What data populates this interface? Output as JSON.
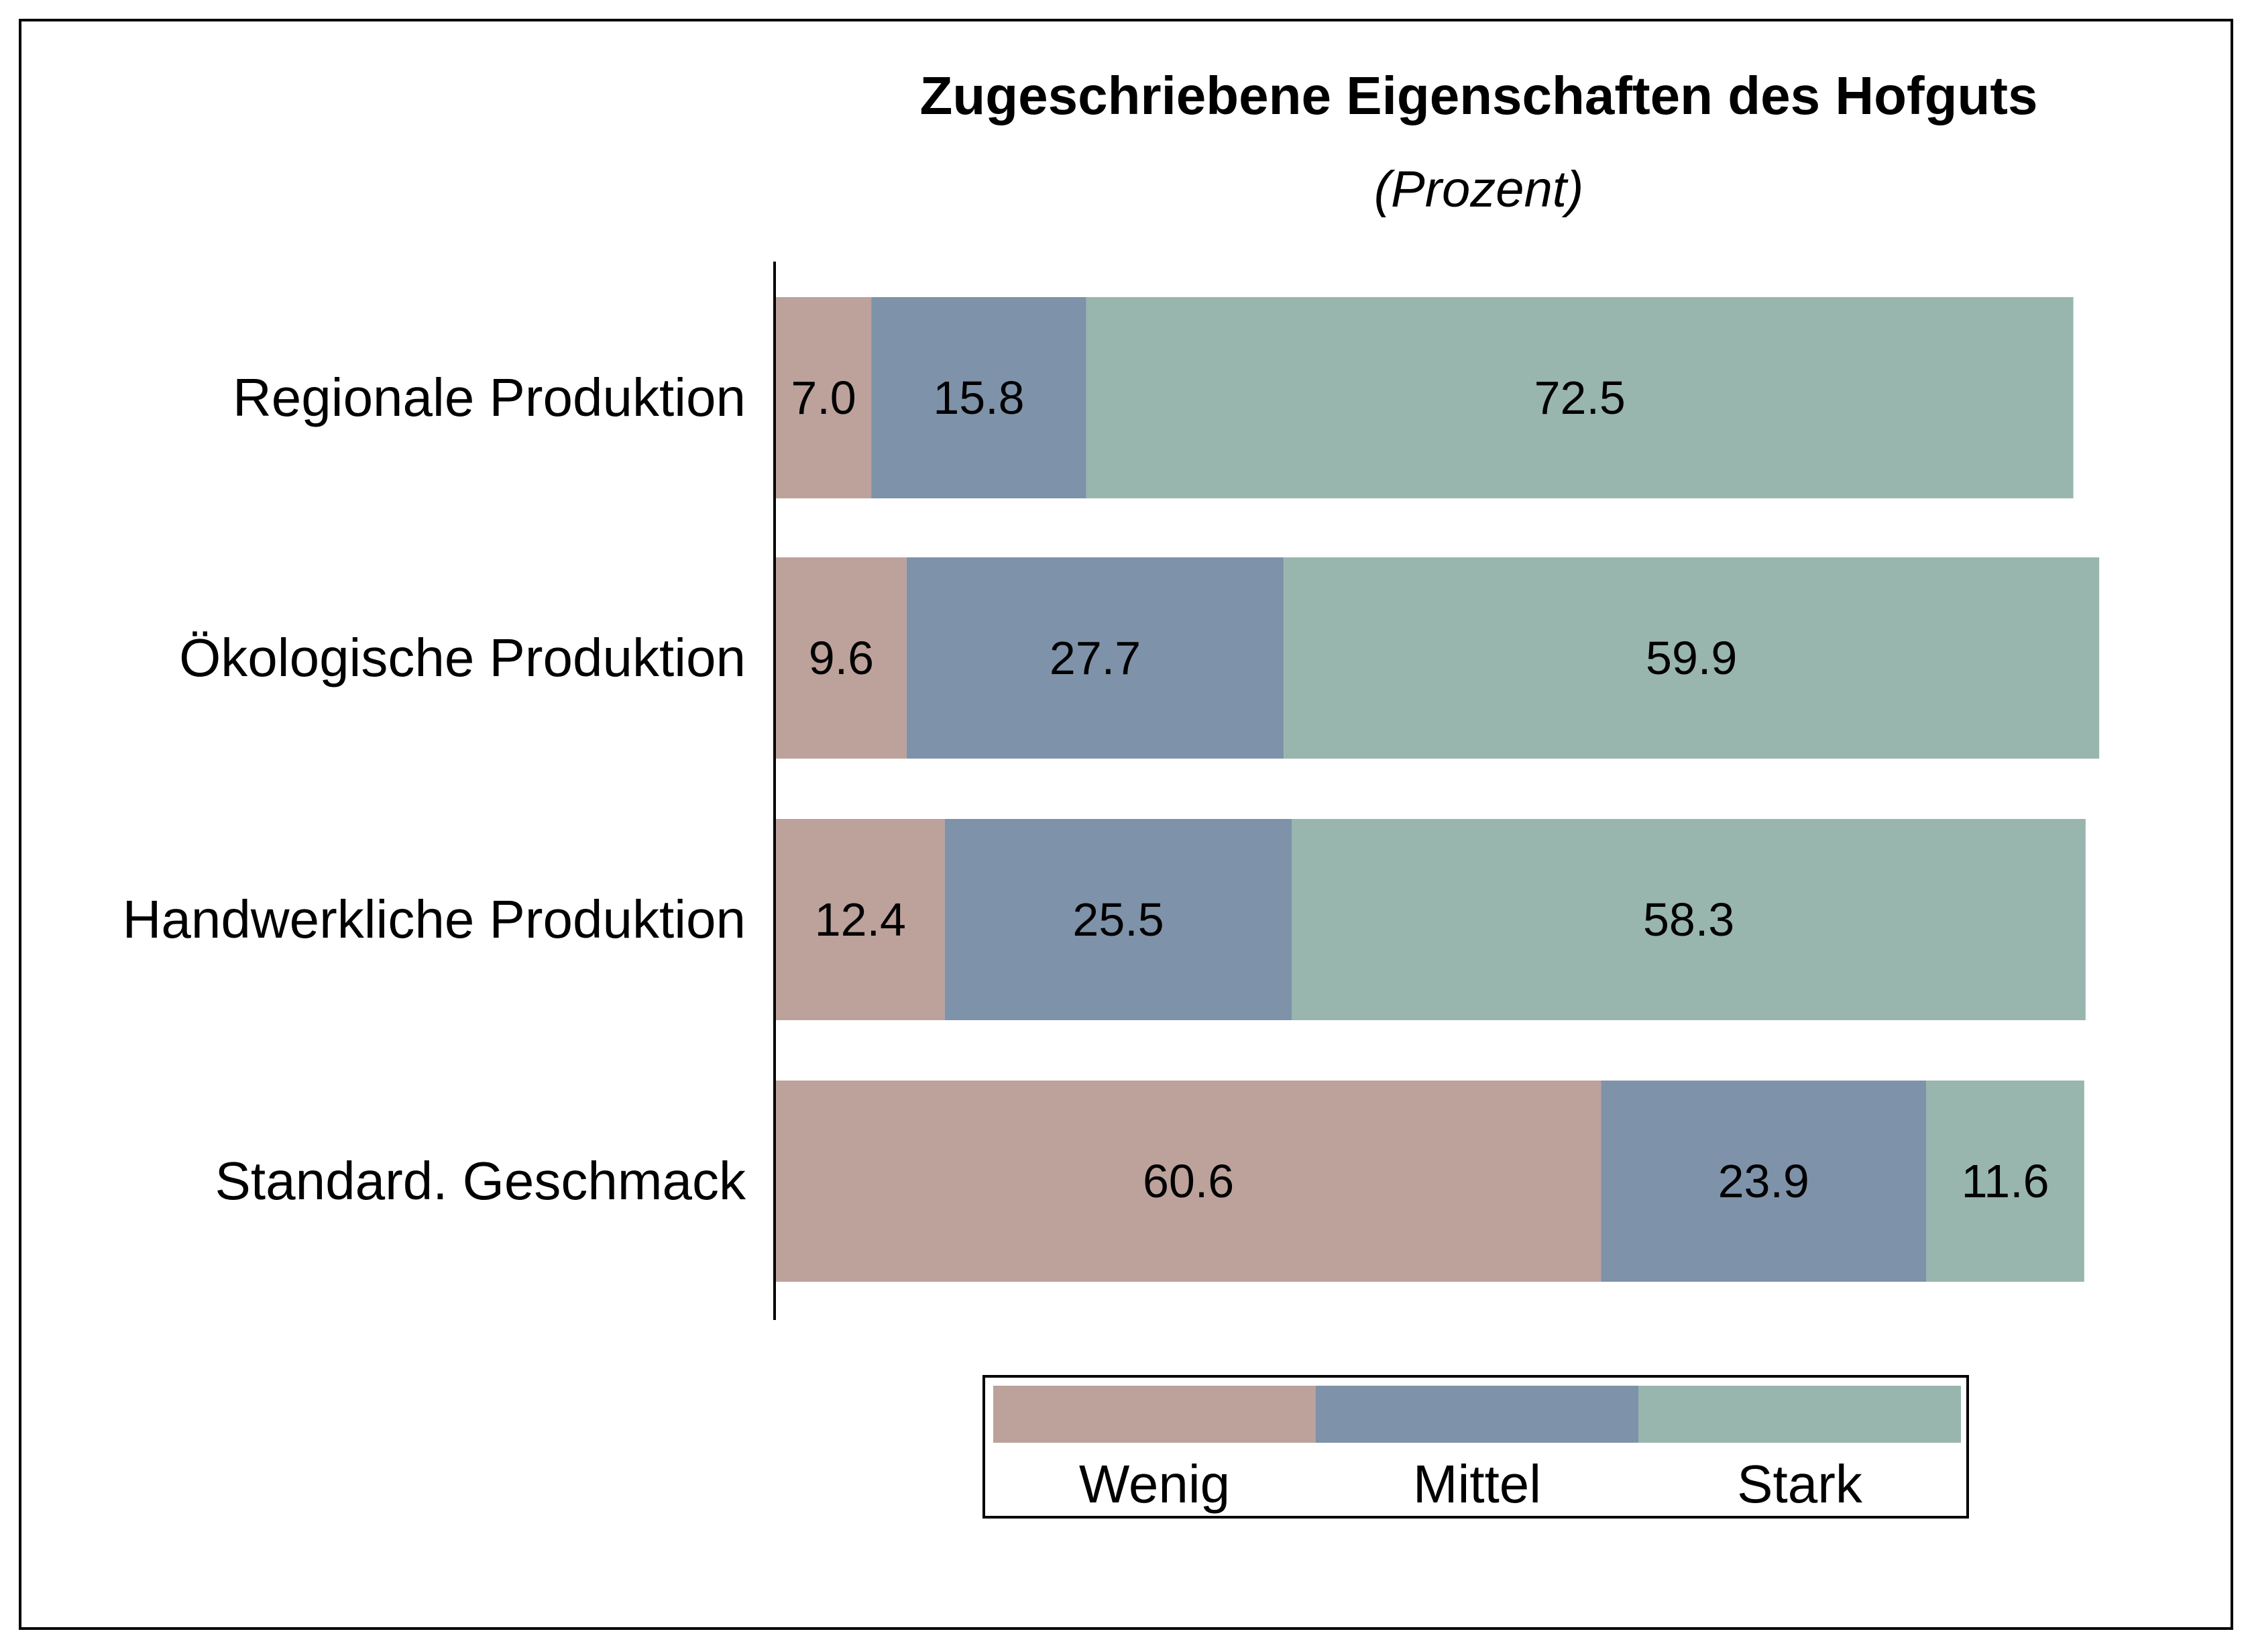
{
  "chart_data": {
    "type": "bar",
    "orientation": "horizontal",
    "stacked": true,
    "title": "Zugeschriebene Eigenschaften des Hofguts",
    "subtitle": "(Prozent)",
    "categories": [
      "Regionale Produktion",
      "Ökologische Produktion",
      "Handwerkliche Produktion",
      "Standard. Geschmack"
    ],
    "series": [
      {
        "name": "Wenig",
        "color": "#bda19b",
        "values": [
          7.0,
          9.6,
          12.4,
          60.6
        ],
        "labels": [
          "7.0",
          "9.6",
          "12.4",
          "60.6"
        ]
      },
      {
        "name": "Mittel",
        "color": "#7e92a9",
        "values": [
          15.8,
          27.7,
          25.5,
          23.9
        ],
        "labels": [
          "15.8",
          "27.7",
          "25.5",
          "23.9"
        ]
      },
      {
        "name": "Stark",
        "color": "#98b5ae",
        "values": [
          72.5,
          59.9,
          58.3,
          11.6
        ],
        "labels": [
          "72.5",
          "59.9",
          "58.3",
          "11.6"
        ]
      }
    ],
    "xlim": [
      0,
      100
    ],
    "xlabel": "",
    "ylabel": "",
    "grid": false,
    "legend": "bottom"
  }
}
